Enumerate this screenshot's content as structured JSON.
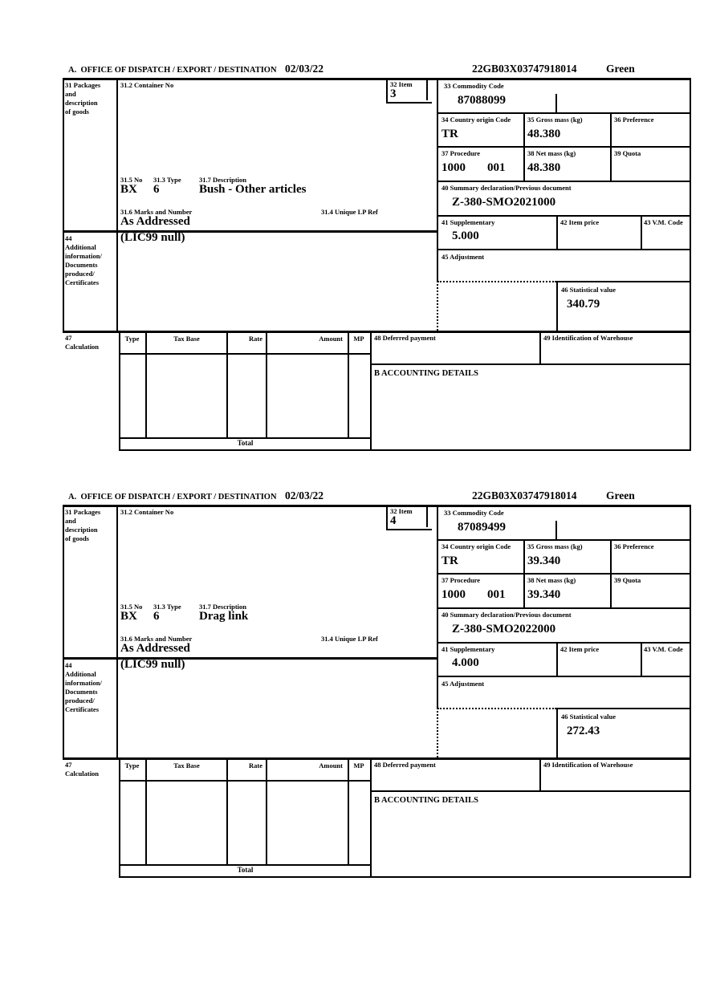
{
  "labels": {
    "office_of_dispatch": "A.  OFFICE OF DISPATCH / EXPORT / DESTINATION",
    "packages": "31 Packages\nand\ndescription\nof goods",
    "container_no": "31.2 Container No",
    "item": "32 Item",
    "commodity_code": "33 Commodity Code",
    "country_origin_code": "34 Country origin Code",
    "gross_mass": "35 Gross mass (kg)",
    "preference": "36 Preference",
    "procedure": "37 Procedure",
    "net_mass": "38 Net mass (kg)",
    "quota": "39 Quota",
    "summary_declaration": "40 Summary declaration/Previous document",
    "supplementary": "41 Supplementary",
    "item_price": "42 Item price",
    "vm_code": "43 V.M. Code",
    "additional_information": "44\nAdditional\ninformation/\nDocuments\nproduced/\nCertificates",
    "adjustment": "45 Adjustment",
    "statistical_value": "46 Statistical value",
    "calculation": "47\nCalculation",
    "deferred_payment": "48 Deferred payment",
    "warehouse_id": "49 Identification of Warehouse",
    "accounting_details": "B ACCOUNTING DETAILS",
    "no_315": "31.5 No",
    "type_313": "31.3 Type",
    "description_317": "31.7 Description",
    "marks_316": "31.6 Marks and Number",
    "lp_ref_314": "31.4 Unique LP Ref",
    "calc_type": "Type",
    "calc_tax_base": "Tax Base",
    "calc_rate": "Rate",
    "calc_amount": "Amount",
    "calc_mp": "MP",
    "calc_total": "Total"
  },
  "forms": [
    {
      "date": "02/03/22",
      "reference": "22GB03X03747918014",
      "routing": "Green",
      "item_no": "3",
      "commodity_code": "87088099",
      "country_origin": "TR",
      "gross_mass_kg": "48.380",
      "net_mass_kg": "48.380",
      "procedure_code": "1000",
      "procedure_code_2": "001",
      "previous_document": "Z-380-SMO2021000",
      "supplementary_units": "5.000",
      "statistical_value": "340.79",
      "package_kind": "BX",
      "package_count": "6",
      "goods_description": "Bush - Other articles",
      "marks_and_number": "As Addressed",
      "additional_info": "(LIC99 null)"
    },
    {
      "date": "02/03/22",
      "reference": "22GB03X03747918014",
      "routing": "Green",
      "item_no": "4",
      "commodity_code": "87089499",
      "country_origin": "TR",
      "gross_mass_kg": "39.340",
      "net_mass_kg": "39.340",
      "procedure_code": "1000",
      "procedure_code_2": "001",
      "previous_document": "Z-380-SMO2022000",
      "supplementary_units": "4.000",
      "statistical_value": "272.43",
      "package_kind": "BX",
      "package_count": "6",
      "goods_description": "Drag link",
      "marks_and_number": "As Addressed",
      "additional_info": "(LIC99 null)"
    }
  ]
}
